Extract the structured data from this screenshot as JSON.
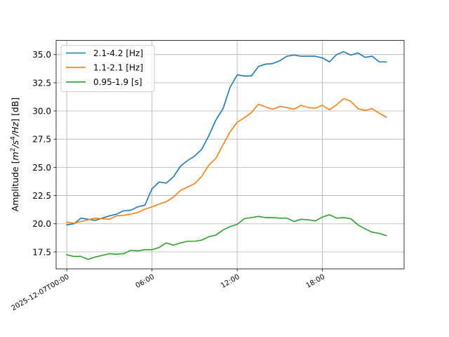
{
  "chart_data": {
    "type": "line",
    "title": "",
    "xlabel": "",
    "ylabel": "Amplitude [m²/s⁴/Hz] [dB]",
    "ylabel_parts": {
      "prefix": "Amplitude [",
      "m": "m",
      "exp1": "2",
      "s": "/s",
      "exp2": "4",
      "hz": "/Hz",
      "suffix": "] [dB]"
    },
    "x_unit": "hours since 2025-12-07T00:00",
    "xlim": [
      -0.75,
      23.75
    ],
    "ylim": [
      16.0,
      36.25
    ],
    "xticks": [
      {
        "value": 0,
        "label": "2025-12-07T00:00"
      },
      {
        "value": 6,
        "label": "06:00"
      },
      {
        "value": 12,
        "label": "12:00"
      },
      {
        "value": 18,
        "label": "18:00"
      }
    ],
    "yticks": [
      {
        "value": 17.5,
        "label": "17.5"
      },
      {
        "value": 20.0,
        "label": "20.0"
      },
      {
        "value": 22.5,
        "label": "22.5"
      },
      {
        "value": 25.0,
        "label": "25.0"
      },
      {
        "value": 27.5,
        "label": "27.5"
      },
      {
        "value": 30.0,
        "label": "30.0"
      },
      {
        "value": 32.5,
        "label": "32.5"
      },
      {
        "value": 35.0,
        "label": "35.0"
      }
    ],
    "grid": true,
    "legend_position": "top-left",
    "x": [
      0,
      0.5,
      1,
      1.5,
      2,
      2.5,
      3,
      3.5,
      4,
      4.5,
      5,
      5.5,
      6,
      6.5,
      7,
      7.5,
      8,
      8.5,
      9,
      9.5,
      10,
      10.5,
      11,
      11.5,
      12,
      12.5,
      13,
      13.5,
      14,
      14.5,
      15,
      15.5,
      16,
      16.5,
      17,
      17.5,
      18,
      18.5,
      19,
      19.5,
      20,
      20.5,
      21,
      21.5,
      22,
      22.5
    ],
    "series": [
      {
        "name": "2.1-4.2 [Hz]",
        "color": "#1f77b4",
        "values": [
          19.9,
          20.0,
          20.5,
          20.4,
          20.3,
          20.5,
          20.7,
          20.85,
          21.15,
          21.2,
          21.5,
          21.65,
          23.1,
          23.7,
          23.6,
          24.15,
          25.1,
          25.6,
          26.0,
          26.6,
          27.8,
          29.2,
          30.2,
          32.1,
          33.2,
          33.1,
          33.1,
          33.95,
          34.15,
          34.2,
          34.45,
          34.85,
          34.95,
          34.85,
          34.85,
          34.85,
          34.7,
          34.35,
          35.0,
          35.25,
          34.95,
          35.15,
          34.75,
          34.85,
          34.35,
          34.35
        ]
      },
      {
        "name": "1.1-2.1 [Hz]",
        "color": "#ff7f0e",
        "values": [
          20.15,
          20.05,
          20.2,
          20.35,
          20.5,
          20.45,
          20.4,
          20.7,
          20.75,
          20.85,
          21.0,
          21.3,
          21.5,
          21.75,
          21.95,
          22.35,
          22.95,
          23.25,
          23.55,
          24.2,
          25.2,
          25.8,
          27.0,
          28.15,
          29.0,
          29.4,
          29.85,
          30.6,
          30.35,
          30.15,
          30.4,
          30.3,
          30.15,
          30.5,
          30.3,
          30.25,
          30.5,
          30.1,
          30.55,
          31.1,
          30.85,
          30.2,
          30.05,
          30.2,
          29.8,
          29.45
        ]
      },
      {
        "name": "0.95-1.9 [s]",
        "color": "#2ca02c",
        "values": [
          17.25,
          17.1,
          17.1,
          16.85,
          17.05,
          17.2,
          17.35,
          17.3,
          17.35,
          17.65,
          17.6,
          17.7,
          17.7,
          17.9,
          18.3,
          18.1,
          18.3,
          18.45,
          18.45,
          18.55,
          18.85,
          19.0,
          19.45,
          19.75,
          19.95,
          20.45,
          20.55,
          20.65,
          20.55,
          20.55,
          20.5,
          20.5,
          20.2,
          20.4,
          20.35,
          20.25,
          20.6,
          20.8,
          20.5,
          20.55,
          20.45,
          19.9,
          19.55,
          19.25,
          19.15,
          18.95
        ]
      }
    ]
  }
}
